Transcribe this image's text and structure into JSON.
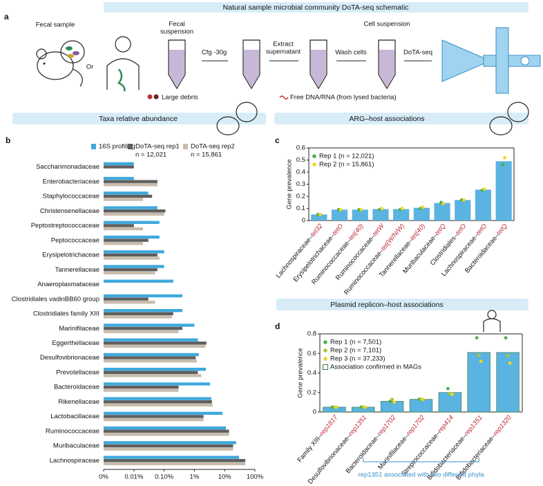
{
  "schematic": {
    "title": "Natural sample microbial community DoTA-seq schematic",
    "label": "a",
    "fecal_sample": "Fecal sample",
    "or": "Or",
    "fecal_suspension": [
      "Fecal",
      "suspension"
    ],
    "cfg": "Cfg -30g",
    "extract": [
      "Extract",
      "supernatant"
    ],
    "wash": "Wash cells",
    "cell_suspension": "Cell suspension",
    "dotaseq": "DoTA-seq",
    "debris": "Large debris",
    "free_dna": "Free DNA/RNA (from lysed bacteria)"
  },
  "banners": {
    "taxa": "Taxa relative abundance",
    "arg": "ARG–host associations",
    "plasmid": "Plasmid replicon–host associations"
  },
  "chart_data": [
    {
      "type": "hbar",
      "panel": "b",
      "xscale": "log",
      "categories": [
        "Saccharimonadaceae",
        "Enterobacteriaceae",
        "Staphylococcaceae",
        "Christensenellaceae",
        "Peptostreptococcaceae",
        "Peptococcaceae",
        "Erysipelotrichaceae",
        "Tannerellaceae",
        "Anaeroplasmataceae",
        "Clostridiales vadinBB60 group",
        "Clostridiales family XIII",
        "Marinifilaceae",
        "Eggerthellaceae",
        "Desulfovibrionaceae",
        "Prevotellaceae",
        "Bacteroidaceae",
        "Rikenellaceae",
        "Lactobacillaceae",
        "Ruminococcaceae",
        "Muribaculaceae",
        "Lachnospiraceae"
      ],
      "series": [
        {
          "name": "16S profiling",
          "color": "#3fa9dc",
          "values": [
            0.01,
            0.01,
            0.03,
            0.06,
            0.07,
            0.07,
            0.1,
            0.1,
            0.2,
            0.4,
            0.4,
            1,
            1.3,
            1.4,
            2.4,
            3.3,
            3.6,
            8.5,
            11,
            24,
            30
          ]
        },
        {
          "name": "DoTA-seq rep1",
          "color": "#5f5f5f",
          "values": [
            0.01,
            0.06,
            0.04,
            0.11,
            0.01,
            0.03,
            0.06,
            0.06,
            null,
            0.03,
            0.2,
            0.4,
            2.5,
            1.1,
            1.3,
            0.3,
            3.8,
            2,
            14,
            19,
            48
          ]
        },
        {
          "name": "DoTA-seq rep2",
          "color": "#c9bcac",
          "values": [
            null,
            0.06,
            0.02,
            0.1,
            0.02,
            0.02,
            0.07,
            0.05,
            null,
            0.05,
            0.18,
            0.3,
            2.3,
            1.2,
            1.7,
            0.3,
            4,
            2,
            14,
            19,
            48
          ]
        }
      ],
      "legend_notes": [
        "n = 12,021",
        "n = 15,861"
      ],
      "xlim": [
        0.001,
        100
      ],
      "xticks": [
        {
          "value": 0.001,
          "label": "0%"
        },
        {
          "value": 0.01,
          "label": "0.01%"
        },
        {
          "value": 0.1,
          "label": "0.10%"
        },
        {
          "value": 1,
          "label": "1%"
        },
        {
          "value": 10,
          "label": "10%"
        },
        {
          "value": 100,
          "label": "100%"
        }
      ]
    },
    {
      "type": "bar",
      "panel": "c",
      "ylabel": "Gene prevalence",
      "color": "#5ab3e0",
      "categories": [
        "Lachnospiraceae–",
        "Erysipelotrichaceae–",
        "Ruminococcaceae–",
        "Ruminococcaceae–",
        "Ruminococcaceae–",
        "Tannerellaceae–",
        "Muribaculaceae–",
        "Clostridiales–",
        "Lachnospiraceae–",
        "Bacteroidaceae–"
      ],
      "genes": [
        "tet32",
        "tetO",
        "tet(40)",
        "tetW",
        "tet(W/N/W)",
        "tet(40)",
        "tetQ",
        "tetO",
        "tetO",
        "tetQ"
      ],
      "values": [
        0.05,
        0.09,
        0.09,
        0.095,
        0.095,
        0.105,
        0.145,
        0.17,
        0.255,
        0.49
      ],
      "series": [
        {
          "name": "Rep 1 (n = 12,021)",
          "color": "#4caf50",
          "values": [
            0.05,
            0.09,
            0.09,
            0.09,
            0.09,
            0.1,
            0.15,
            0.17,
            0.25,
            0.46
          ]
        },
        {
          "name": "Rep 2 (n = 15,861)",
          "color": "#efd624",
          "values": [
            0.05,
            0.09,
            0.09,
            0.1,
            0.1,
            0.11,
            0.14,
            0.17,
            0.26,
            0.52
          ]
        }
      ],
      "ylim": [
        0,
        0.6
      ],
      "yticks": [
        0,
        0.1,
        0.2,
        0.3,
        0.4,
        0.5,
        0.6
      ]
    },
    {
      "type": "bar",
      "panel": "d",
      "ylabel": "Gene prevalence",
      "color": "#5ab3e0",
      "bar_outline": "#3d7f48",
      "categories": [
        "Family XIII–",
        "Desulfovibrionaceae–",
        "Bacteroidaceae–",
        "Marinifilaceae–",
        "Streptococcaceae–",
        "Bifidobacteriaceae–",
        "Bifidobacteriaceae–"
      ],
      "genes": [
        "rep1817",
        "rep1351",
        "rep1702",
        "rep1702",
        "rep414",
        "rep1351",
        "rep1320"
      ],
      "values": [
        0.05,
        0.05,
        0.11,
        0.13,
        0.2,
        0.61,
        0.61
      ],
      "series": [
        {
          "name": "Rep 1 (n = 7,501)",
          "color": "#4caf50",
          "values": [
            0.05,
            0.05,
            0.11,
            0.13,
            0.24,
            0.76,
            0.76
          ]
        },
        {
          "name": "Rep 2 (n = 7,101)",
          "color": "#a9c53a",
          "values": [
            0.05,
            0.05,
            0.13,
            0.13,
            0.19,
            0.58,
            0.58
          ]
        },
        {
          "name": "Rep 3 (n = 37,233)",
          "color": "#efd624",
          "values": [
            0.05,
            0.05,
            0.1,
            0.13,
            0.18,
            0.52,
            0.5
          ]
        }
      ],
      "legend_extra": "Association confirmed in MAGs",
      "annotation": "rep1351 associated with two different phyla",
      "ylim": [
        0,
        0.8
      ],
      "yticks": [
        0,
        0.2,
        0.4,
        0.6,
        0.8
      ]
    }
  ]
}
